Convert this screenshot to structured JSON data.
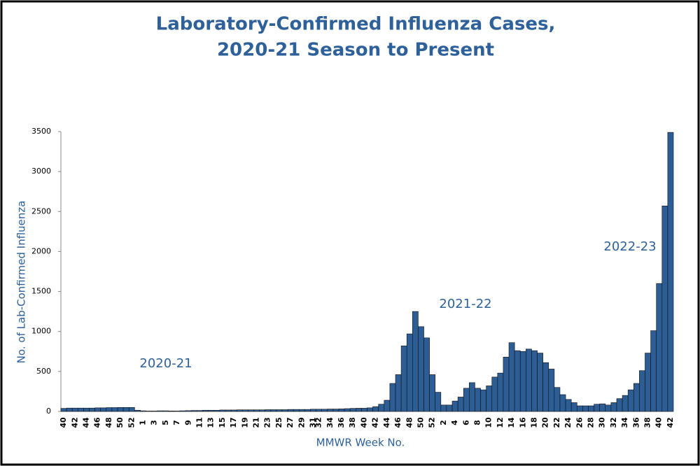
{
  "chart_data": {
    "type": "bar",
    "title": "Laboratory-Confirmed Influenza Cases,",
    "subtitle": "2020-21 Season to Present",
    "x_label": "MMWR Week No.",
    "y_label": "No. of Lab-Confirmed Influenza",
    "annotations": [
      "2020-21",
      "2021-22",
      "2022-23"
    ],
    "color": "#2c5d95",
    "categories": [
      "40",
      null,
      "42",
      null,
      "44",
      null,
      "46",
      null,
      "48",
      null,
      "50",
      null,
      "52",
      null,
      "1",
      null,
      "3",
      null,
      "5",
      null,
      "7",
      null,
      "9",
      null,
      "11",
      null,
      "13",
      null,
      "15",
      null,
      "17",
      null,
      "19",
      null,
      "21",
      null,
      "23",
      null,
      "25",
      null,
      "27",
      null,
      "29",
      null,
      "31",
      "32",
      null,
      "34",
      null,
      "36",
      null,
      "38",
      null,
      "40",
      null,
      "42",
      null,
      "44",
      null,
      "46",
      null,
      "48",
      null,
      "50",
      null,
      "52",
      null,
      "2",
      null,
      "4",
      null,
      "6",
      null,
      "8",
      null,
      "10",
      null,
      "12",
      null,
      "14",
      null,
      "16",
      null,
      "18",
      null,
      "20",
      null,
      "22",
      null,
      "24",
      null,
      "26",
      null,
      "28",
      null,
      "30",
      null,
      "32",
      null,
      "34",
      null,
      "36",
      null,
      "38",
      null,
      "40",
      null,
      "42"
    ],
    "values": [
      38,
      42,
      42,
      42,
      42,
      42,
      45,
      45,
      48,
      48,
      50,
      50,
      50,
      15,
      8,
      5,
      5,
      8,
      8,
      6,
      5,
      8,
      10,
      12,
      12,
      15,
      15,
      15,
      18,
      18,
      18,
      20,
      20,
      20,
      20,
      20,
      22,
      22,
      22,
      22,
      25,
      25,
      25,
      25,
      28,
      28,
      28,
      30,
      30,
      32,
      35,
      38,
      40,
      40,
      45,
      60,
      90,
      140,
      350,
      460,
      820,
      970,
      1250,
      1060,
      920,
      460,
      240,
      80,
      80,
      130,
      180,
      290,
      360,
      290,
      270,
      320,
      430,
      480,
      680,
      860,
      760,
      750,
      780,
      760,
      730,
      610,
      530,
      300,
      210,
      150,
      110,
      70,
      70,
      70,
      90,
      95,
      80,
      110,
      160,
      200,
      270,
      350,
      510,
      730,
      1010,
      1600,
      2570,
      3490
    ],
    "ylim": [
      0,
      3500
    ],
    "yticks": [
      0,
      500,
      1000,
      1500,
      2000,
      2500,
      3000,
      3500
    ],
    "grid": false
  }
}
